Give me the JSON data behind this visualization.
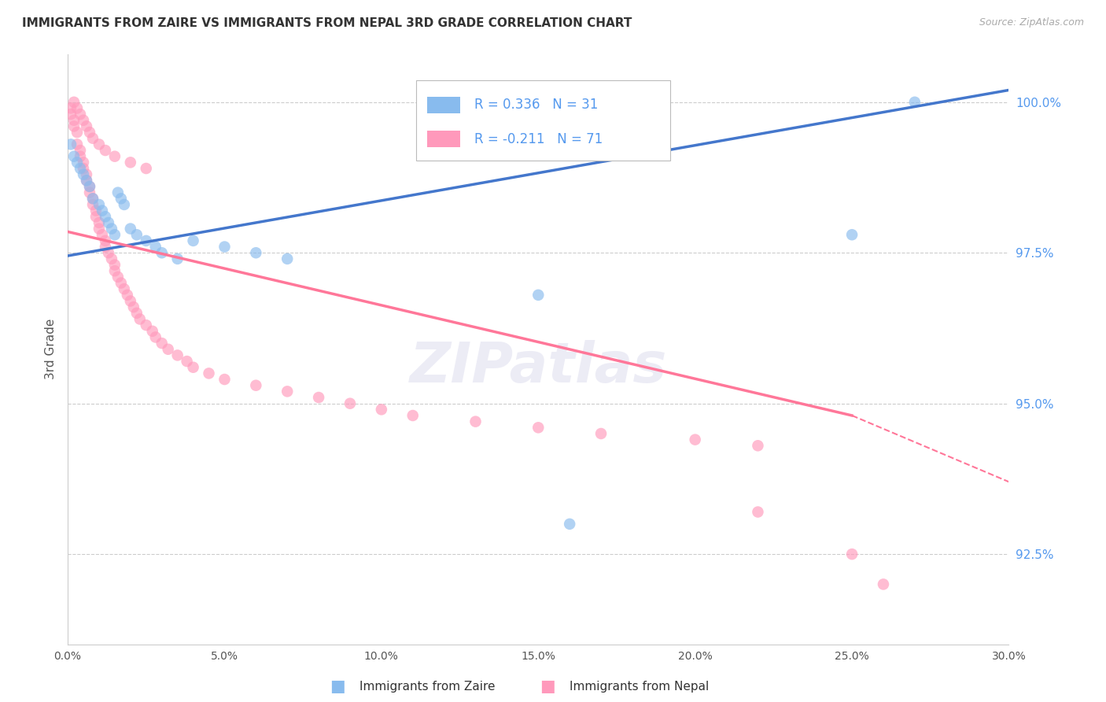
{
  "title": "IMMIGRANTS FROM ZAIRE VS IMMIGRANTS FROM NEPAL 3RD GRADE CORRELATION CHART",
  "source": "Source: ZipAtlas.com",
  "ylabel": "3rd Grade",
  "legend_label_blue": "Immigrants from Zaire",
  "legend_label_pink": "Immigrants from Nepal",
  "legend_R_blue": "R = 0.336",
  "legend_N_blue": "N = 31",
  "legend_R_pink": "R = -0.211",
  "legend_N_pink": "N = 71",
  "xlim": [
    0.0,
    0.3
  ],
  "ylim": [
    0.91,
    1.008
  ],
  "xtick_labels": [
    "0.0%",
    "5.0%",
    "10.0%",
    "15.0%",
    "20.0%",
    "25.0%",
    "30.0%"
  ],
  "xtick_vals": [
    0.0,
    0.05,
    0.1,
    0.15,
    0.2,
    0.25,
    0.3
  ],
  "ytick_vals": [
    0.925,
    0.95,
    0.975,
    1.0
  ],
  "ytick_labels": [
    "92.5%",
    "95.0%",
    "97.5%",
    "100.0%"
  ],
  "color_blue": "#88BBEE",
  "color_pink": "#FF99BB",
  "color_blue_line": "#4477CC",
  "color_pink_line": "#FF7799",
  "color_ytick": "#5599EE",
  "background_color": "#FFFFFF",
  "title_fontsize": 11,
  "source_fontsize": 9,
  "blue_x": [
    0.001,
    0.002,
    0.003,
    0.004,
    0.005,
    0.006,
    0.007,
    0.008,
    0.01,
    0.011,
    0.012,
    0.013,
    0.014,
    0.015,
    0.016,
    0.017,
    0.018,
    0.02,
    0.022,
    0.025,
    0.028,
    0.03,
    0.035,
    0.04,
    0.05,
    0.06,
    0.07,
    0.15,
    0.16,
    0.27,
    0.25
  ],
  "blue_y": [
    0.993,
    0.991,
    0.99,
    0.989,
    0.988,
    0.987,
    0.986,
    0.984,
    0.983,
    0.982,
    0.981,
    0.98,
    0.979,
    0.978,
    0.985,
    0.984,
    0.983,
    0.979,
    0.978,
    0.977,
    0.976,
    0.975,
    0.974,
    0.977,
    0.976,
    0.975,
    0.974,
    0.968,
    0.93,
    1.0,
    0.978
  ],
  "pink_x": [
    0.001,
    0.001,
    0.002,
    0.002,
    0.003,
    0.003,
    0.004,
    0.004,
    0.005,
    0.005,
    0.006,
    0.006,
    0.007,
    0.007,
    0.008,
    0.008,
    0.009,
    0.009,
    0.01,
    0.01,
    0.011,
    0.012,
    0.012,
    0.013,
    0.014,
    0.015,
    0.015,
    0.016,
    0.017,
    0.018,
    0.019,
    0.02,
    0.021,
    0.022,
    0.023,
    0.025,
    0.027,
    0.028,
    0.03,
    0.032,
    0.035,
    0.038,
    0.04,
    0.045,
    0.05,
    0.06,
    0.07,
    0.08,
    0.09,
    0.1,
    0.11,
    0.13,
    0.15,
    0.17,
    0.2,
    0.22,
    0.002,
    0.003,
    0.004,
    0.005,
    0.006,
    0.007,
    0.008,
    0.01,
    0.012,
    0.015,
    0.02,
    0.025,
    0.22,
    0.25,
    0.26
  ],
  "pink_y": [
    0.999,
    0.998,
    0.997,
    0.996,
    0.995,
    0.993,
    0.992,
    0.991,
    0.99,
    0.989,
    0.988,
    0.987,
    0.986,
    0.985,
    0.984,
    0.983,
    0.982,
    0.981,
    0.98,
    0.979,
    0.978,
    0.977,
    0.976,
    0.975,
    0.974,
    0.973,
    0.972,
    0.971,
    0.97,
    0.969,
    0.968,
    0.967,
    0.966,
    0.965,
    0.964,
    0.963,
    0.962,
    0.961,
    0.96,
    0.959,
    0.958,
    0.957,
    0.956,
    0.955,
    0.954,
    0.953,
    0.952,
    0.951,
    0.95,
    0.949,
    0.948,
    0.947,
    0.946,
    0.945,
    0.944,
    0.943,
    1.0,
    0.999,
    0.998,
    0.997,
    0.996,
    0.995,
    0.994,
    0.993,
    0.992,
    0.991,
    0.99,
    0.989,
    0.932,
    0.925,
    0.92
  ],
  "blue_line_x0": 0.0,
  "blue_line_y0": 0.9745,
  "blue_line_x1": 0.3,
  "blue_line_y1": 1.002,
  "pink_line_x0": 0.0,
  "pink_line_y0": 0.9785,
  "pink_line_solid_x1": 0.25,
  "pink_line_solid_y1": 0.948,
  "pink_line_dash_x1": 0.3,
  "pink_line_dash_y1": 0.937
}
